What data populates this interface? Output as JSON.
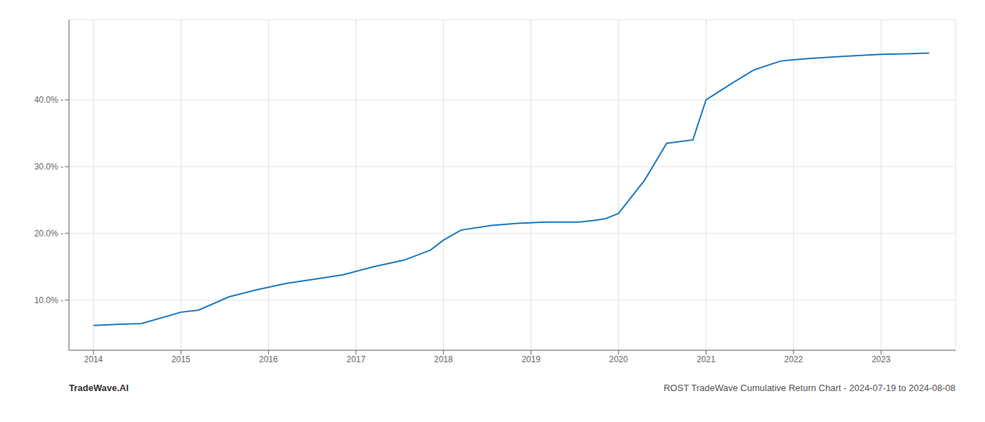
{
  "chart_data": {
    "type": "line",
    "title": "ROST TradeWave Cumulative Return Chart - 2024-07-19 to 2024-08-08",
    "annotations": [
      "TradeWave.AI"
    ],
    "x": [
      2014.0,
      2014.3,
      2014.55,
      2015.0,
      2015.2,
      2015.55,
      2015.85,
      2016.2,
      2016.55,
      2016.85,
      2017.2,
      2017.55,
      2017.85,
      2018.0,
      2018.2,
      2018.55,
      2018.85,
      2019.0,
      2019.2,
      2019.55,
      2019.7,
      2019.85,
      2020.0,
      2020.3,
      2020.55,
      2020.85,
      2021.0,
      2021.3,
      2021.55,
      2021.85,
      2022.0,
      2022.2,
      2022.55,
      2022.85,
      2023.0,
      2023.55
    ],
    "values": [
      6.2,
      6.4,
      6.5,
      8.2,
      8.5,
      10.5,
      11.5,
      12.5,
      13.2,
      13.8,
      15.0,
      16.0,
      17.5,
      19.0,
      20.5,
      21.2,
      21.5,
      21.6,
      21.7,
      21.7,
      21.9,
      22.2,
      23.0,
      28.0,
      33.5,
      34.0,
      40.0,
      42.5,
      44.5,
      45.8,
      46.0,
      46.2,
      46.5,
      46.7,
      46.8,
      47.0
    ],
    "color": "#1a78c2",
    "xlim": [
      2013.72,
      2023.85
    ],
    "xticks": [
      2014,
      2015,
      2016,
      2017,
      2018,
      2019,
      2020,
      2021,
      2022,
      2023
    ],
    "ylim": [
      2.5,
      52
    ],
    "yticks": [
      {
        "value": 10.0,
        "label": "10.0% -"
      },
      {
        "value": 20.0,
        "label": "20.0% -"
      },
      {
        "value": 30.0,
        "label": "30.0% -"
      },
      {
        "value": 40.0,
        "label": "40.0% -"
      }
    ],
    "grid": true
  }
}
